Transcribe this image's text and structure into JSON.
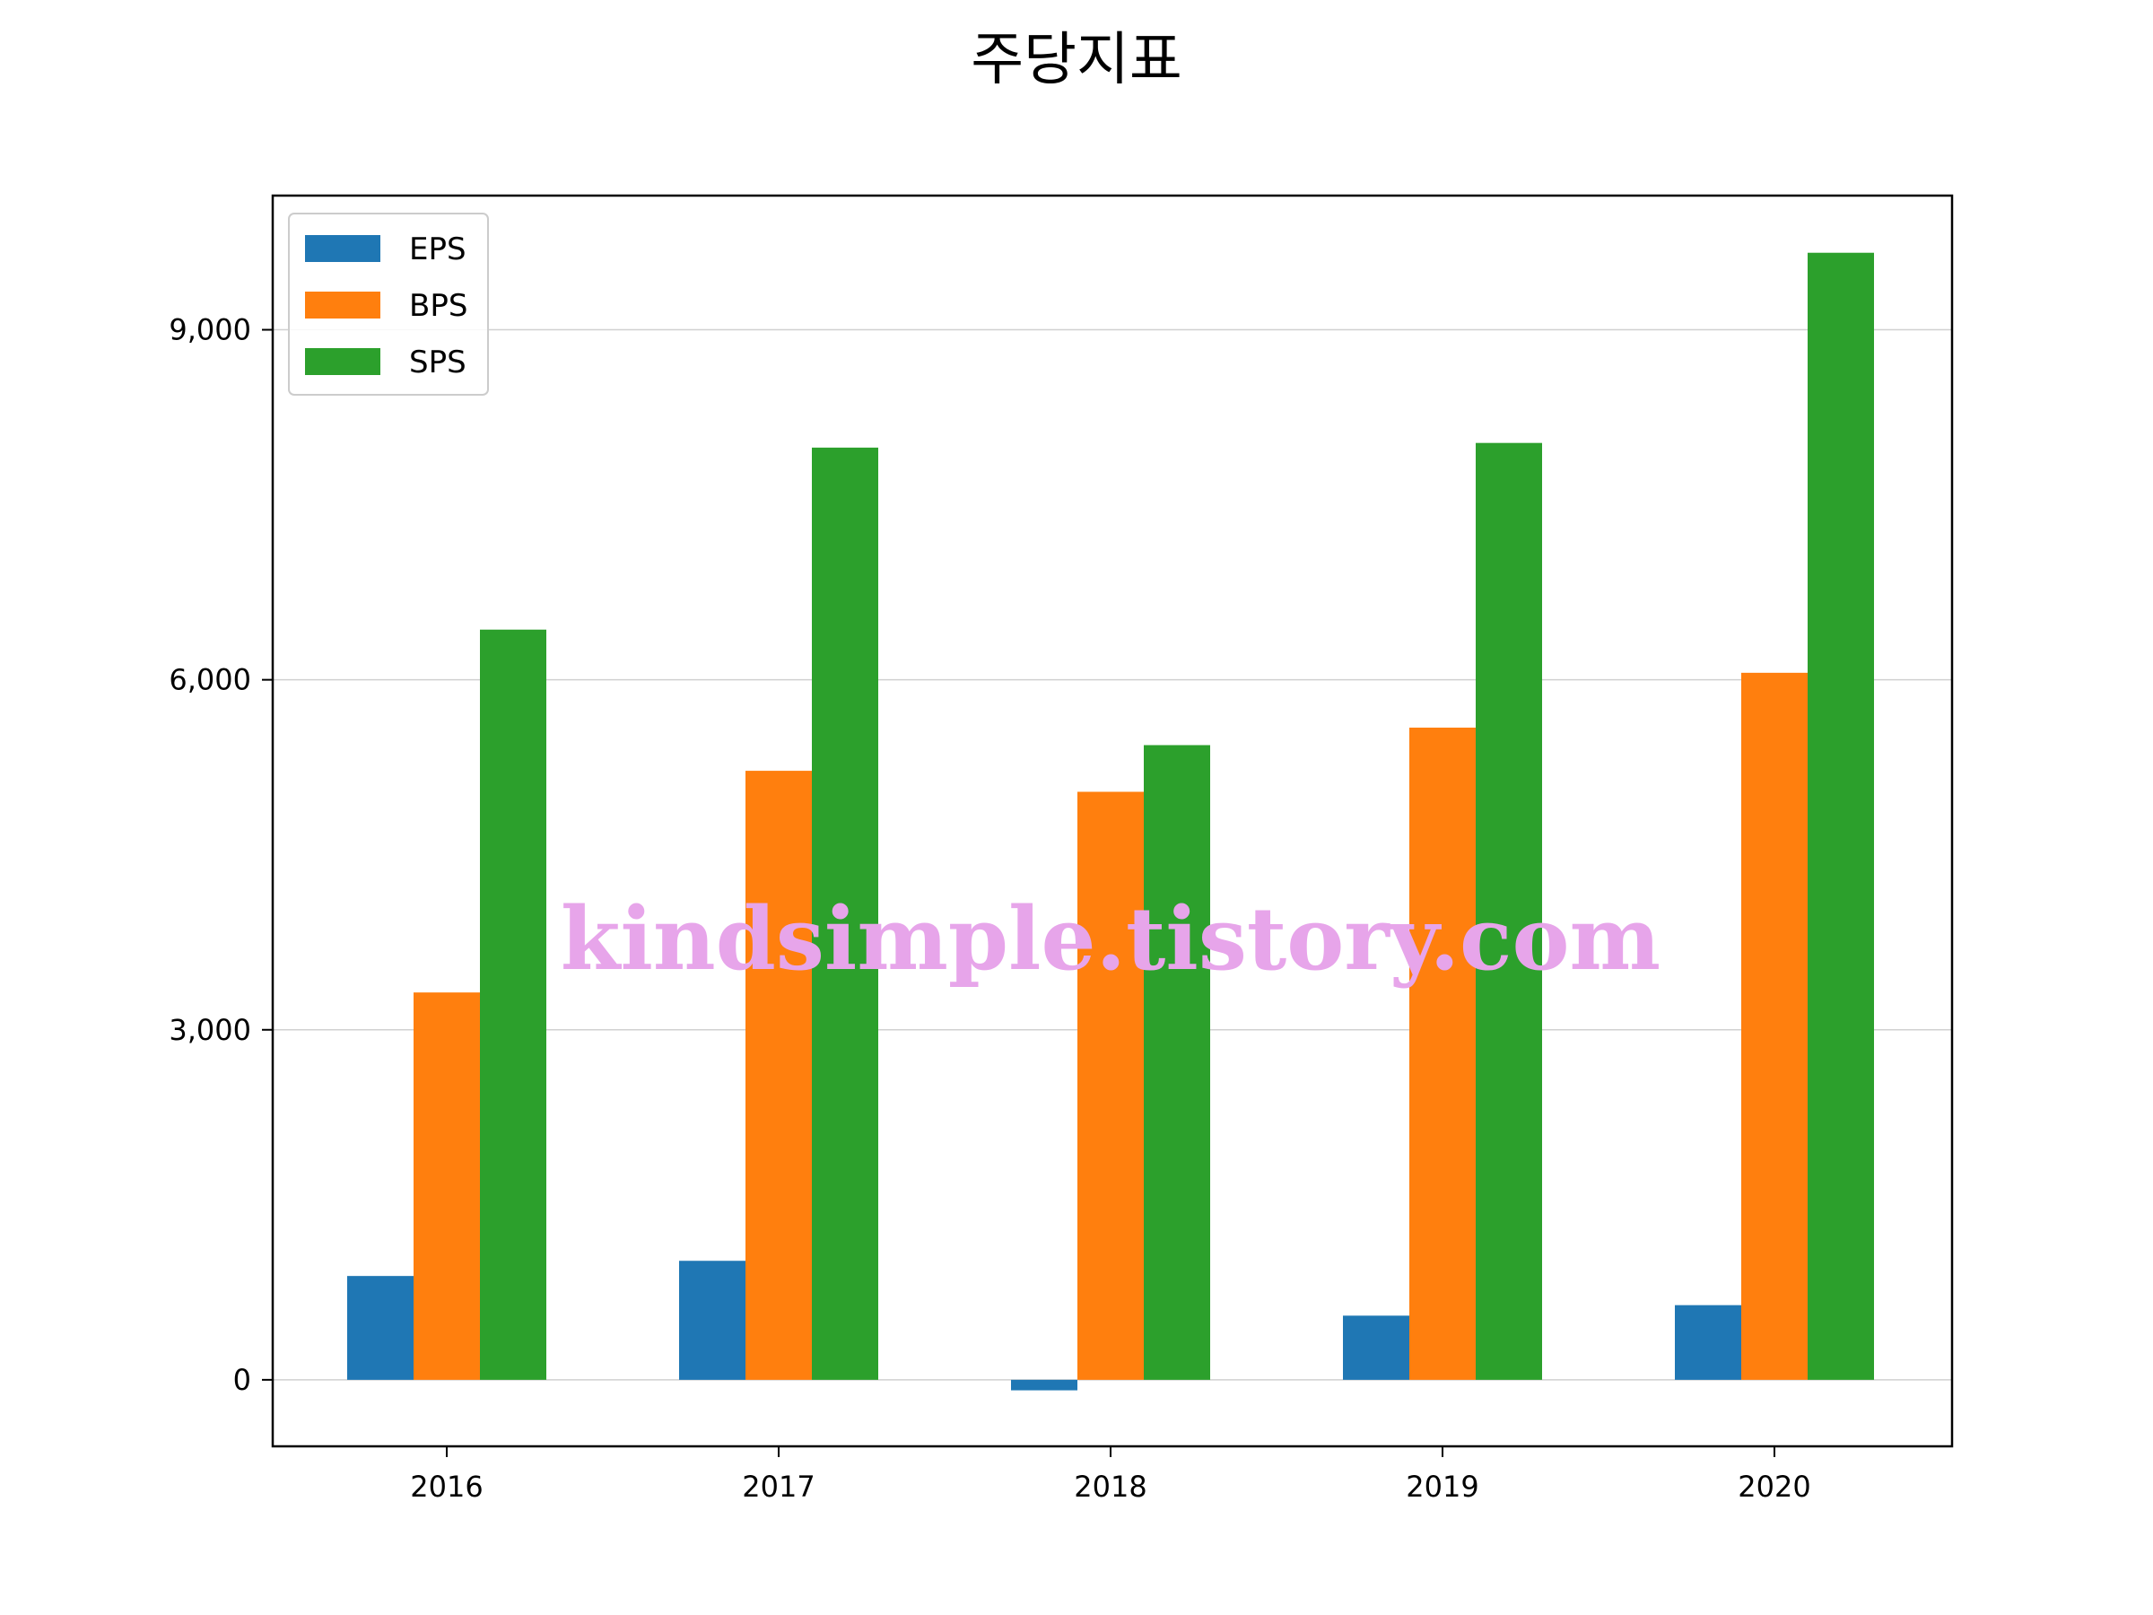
{
  "chart_data": {
    "type": "bar",
    "title": "주당지표",
    "xlabel": "",
    "ylabel": "",
    "categories": [
      "2016",
      "2017",
      "2018",
      "2019",
      "2020"
    ],
    "series": [
      {
        "name": "EPS",
        "color": "#1f77b4",
        "values": [
          890,
          1020,
          -90,
          550,
          640
        ]
      },
      {
        "name": "BPS",
        "color": "#ff7f0e",
        "values": [
          3320,
          5220,
          5040,
          5590,
          6060
        ]
      },
      {
        "name": "SPS",
        "color": "#2ca02c",
        "values": [
          6430,
          7990,
          5440,
          8030,
          9660
        ]
      }
    ],
    "ylim": [
      -570,
      10150
    ],
    "yticks": [
      0,
      3000,
      6000,
      9000
    ],
    "ytick_labels": [
      "0",
      "3,000",
      "6,000",
      "9,000"
    ],
    "grid": "horizontal",
    "legend_position": "upper-left"
  },
  "watermark": "kindsimple.tistory.com"
}
